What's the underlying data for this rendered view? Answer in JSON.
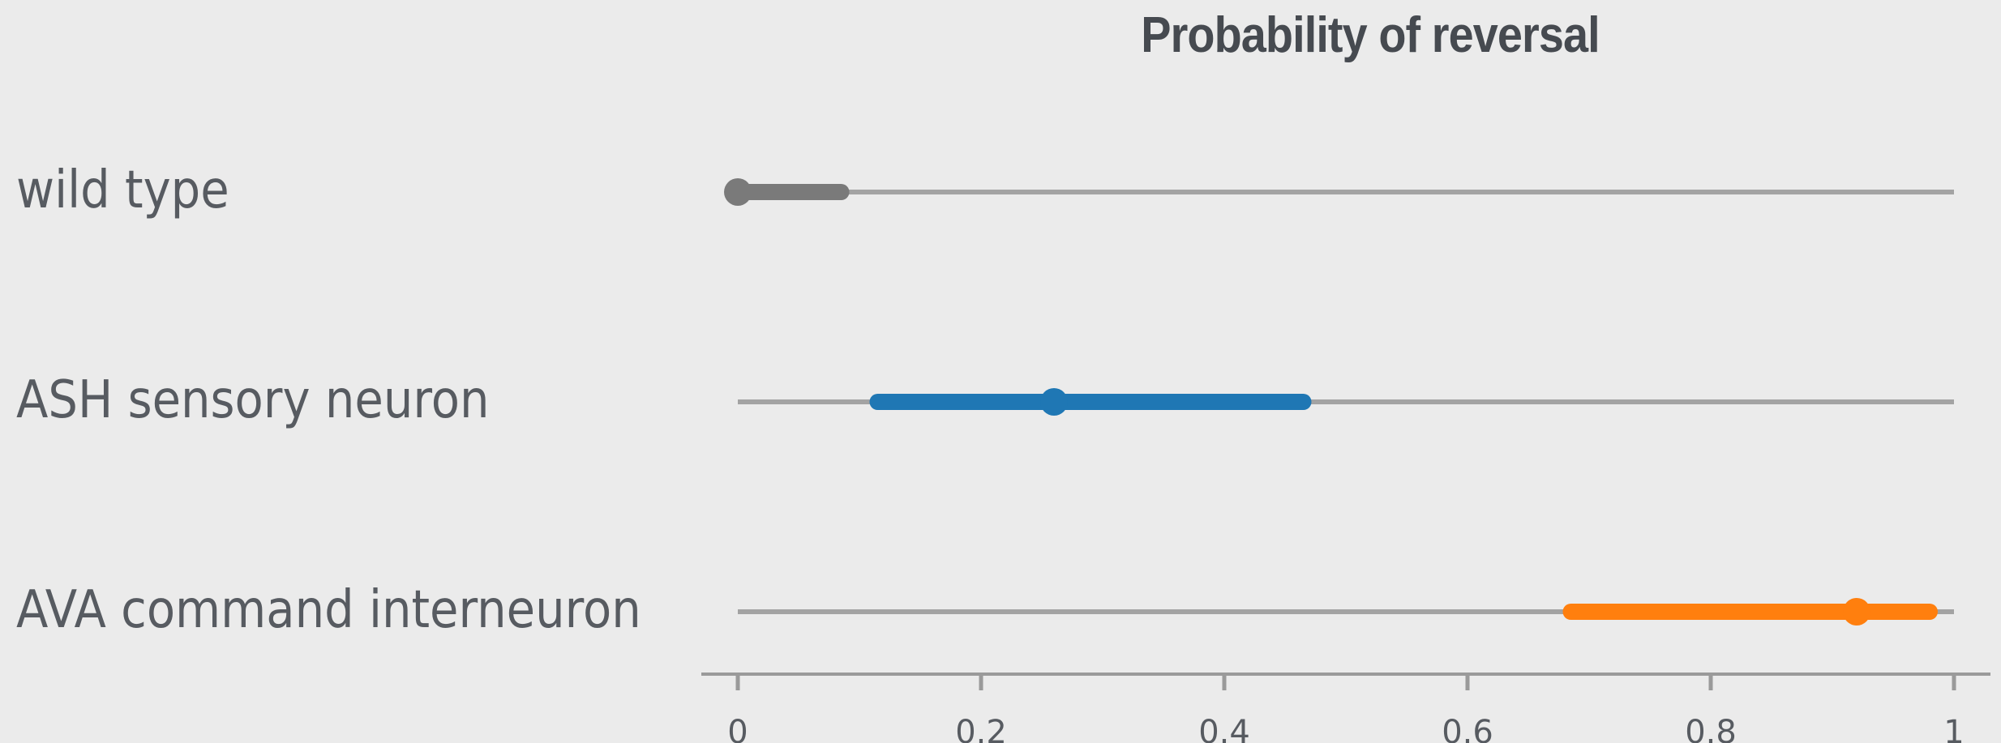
{
  "chart_data": {
    "type": "interval",
    "title": "Probability of reversal",
    "xlabel": "",
    "ylabel": "",
    "xlim": [
      0,
      1
    ],
    "x_ticks": [
      "0",
      "0.2",
      "0.4",
      "0.6",
      "0.8",
      "1"
    ],
    "grid": false,
    "legend": "none",
    "rows": [
      {
        "label": "wild type",
        "estimate": 0.0,
        "low": 0.0,
        "high": 0.085,
        "color": "#7a7a7a"
      },
      {
        "label": "ASH sensory neuron",
        "estimate": 0.26,
        "low": 0.115,
        "high": 0.465,
        "color": "#1f77b4"
      },
      {
        "label": "AVA command interneuron",
        "estimate": 0.92,
        "low": 0.685,
        "high": 0.98,
        "color": "#ff7f0e"
      }
    ],
    "range_line_color": "#a3a3a3",
    "axis_color": "#9a9a9a"
  }
}
